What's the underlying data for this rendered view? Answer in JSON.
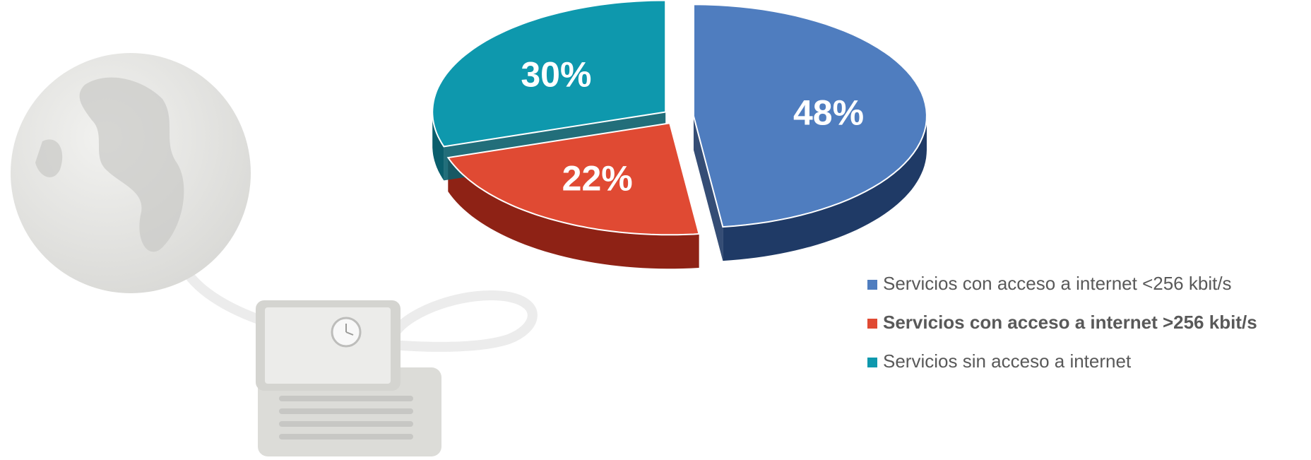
{
  "chart_data": {
    "type": "pie",
    "title": "",
    "slices": [
      {
        "label": "Servicios con acceso a internet <256 kbit/s",
        "value": 48,
        "display": "48%",
        "color": "#4F7DBF",
        "side_color": "#1F3A66",
        "legend_bold": false
      },
      {
        "label": "Servicios con acceso a internet >256 kbit/s",
        "value": 22,
        "display": "22%",
        "color": "#E04A33",
        "side_color": "#8E2215",
        "legend_bold": true
      },
      {
        "label": "Servicios sin acceso a internet",
        "value": 30,
        "display": "30%",
        "color": "#0E98AD",
        "side_color": "#0A5E6C",
        "legend_bold": false
      }
    ],
    "legend_position": "bottom-right",
    "style": "3d exploded pie"
  }
}
